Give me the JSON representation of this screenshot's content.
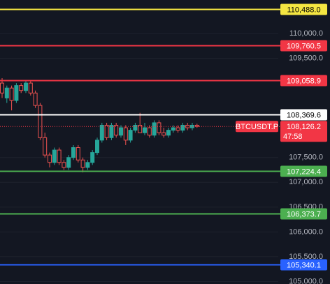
{
  "chart_data": {
    "type": "candlestick",
    "ylim": [
      104950,
      110675
    ],
    "yticks": [
      {
        "value": 110000,
        "label": "110,000.0"
      },
      {
        "value": 109500,
        "label": "109,500.0"
      },
      {
        "value": 107500,
        "label": "107,500.0"
      },
      {
        "value": 107000,
        "label": "107,000.0"
      },
      {
        "value": 106500,
        "label": "106,500.0"
      },
      {
        "value": 106000,
        "label": "106,000.0"
      },
      {
        "value": 105500,
        "label": "105,500.0"
      },
      {
        "value": 105000,
        "label": "105,000.0"
      }
    ],
    "grid": true,
    "up_color": "#26a69a",
    "down_color": "#ef5350",
    "ohlc": {
      "open": [
        109000,
        108700,
        108900,
        108650,
        108950,
        108850,
        109000,
        108800,
        108550,
        107900,
        107550,
        107400,
        107650,
        107400,
        107300,
        107500,
        107700,
        107450,
        107300,
        107400,
        107600,
        107850,
        108150,
        107900,
        108150,
        107950,
        108100,
        107850,
        108050,
        108150,
        108000,
        108100,
        107950,
        108200,
        108000,
        107950,
        108050,
        108100,
        108050,
        108150,
        108100,
        108150
      ],
      "high": [
        109100,
        108950,
        108950,
        109000,
        109000,
        109050,
        109050,
        108850,
        108600,
        108000,
        107600,
        107700,
        107700,
        107450,
        107550,
        107750,
        107750,
        107500,
        107450,
        107650,
        107900,
        108200,
        108200,
        108200,
        108200,
        108150,
        108150,
        108100,
        108200,
        108400,
        108200,
        108150,
        108250,
        108250,
        108100,
        108100,
        108150,
        108150,
        108200,
        108200,
        108200,
        108180
      ],
      "low": [
        108700,
        108600,
        108450,
        108600,
        108800,
        108800,
        108750,
        108500,
        107850,
        107500,
        107300,
        107350,
        107350,
        107250,
        107250,
        107450,
        107400,
        107200,
        107250,
        107350,
        107550,
        107800,
        107850,
        107850,
        107900,
        107900,
        107750,
        107800,
        108000,
        108050,
        107950,
        107900,
        107900,
        107950,
        107900,
        107900,
        108000,
        108000,
        108000,
        108050,
        108050,
        108100
      ],
      "close": [
        108800,
        108900,
        108650,
        108950,
        108850,
        109000,
        108800,
        108550,
        107900,
        107550,
        107400,
        107650,
        107400,
        107300,
        107500,
        107700,
        107450,
        107300,
        107400,
        107600,
        107850,
        108150,
        107900,
        108150,
        107950,
        108100,
        107850,
        108050,
        108150,
        108000,
        108100,
        107950,
        108200,
        108000,
        107950,
        108050,
        108100,
        108050,
        108150,
        108100,
        108150,
        108126.2
      ]
    },
    "levels": [
      {
        "value": 110488.0,
        "label": "110,488.0",
        "color": "#f5e642"
      },
      {
        "value": 109760.5,
        "label": "109,760.5",
        "color": "#f23645"
      },
      {
        "value": 109058.9,
        "label": "109,058.9",
        "color": "#f23645"
      },
      {
        "value": 108369.6,
        "label": "108,369.6",
        "color": "#ffffff"
      },
      {
        "value": 107224.4,
        "label": "107,224.4",
        "color": "#4caf50"
      },
      {
        "value": 106373.7,
        "label": "106,373.7",
        "color": "#4caf50"
      },
      {
        "value": 105340.1,
        "label": "105,340.1",
        "color": "#2962ff"
      }
    ],
    "price": {
      "name": "BTCUSDT.P",
      "value": 108126.2,
      "label": "108,126.2",
      "countdown": "47:58",
      "color": "#f23645"
    }
  }
}
